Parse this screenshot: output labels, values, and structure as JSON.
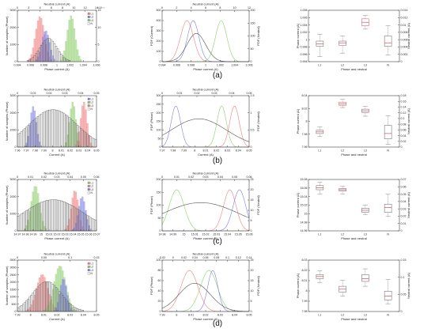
{
  "row_labels": [
    "(a)",
    "(b)",
    "(c)",
    "(d)"
  ],
  "chart_data": [
    {
      "row": "(a)",
      "panels": [
        {
          "type": "histogram",
          "title": "",
          "xlabel": "Phase current (A)",
          "ylabel": "Number of samples (Phase)",
          "top_xlabel": "Neutral current (A)",
          "top_ticks": [
            "0",
            "2",
            "4",
            "6",
            "8",
            "10",
            "12",
            "14"
          ],
          "top_exponent": "×10⁻³",
          "bottom_ticks": [
            "0.994",
            "0.996",
            "0.998",
            "1",
            "1.002",
            "1.004",
            "1.006"
          ],
          "y_ticks": [
            "0",
            "1000",
            "2000",
            "3000"
          ],
          "right_ticks": [
            "0",
            "5",
            "10",
            "15"
          ],
          "legend": [
            "L1",
            "L2",
            "L3",
            "N"
          ],
          "series": [
            {
              "name": "L1",
              "color": "#f08080",
              "center": 0.997,
              "sigma": 0.0008,
              "peak": 2900
            },
            {
              "name": "L2",
              "color": "#8080e8",
              "center": 0.998,
              "sigma": 0.0007,
              "peak": 2000
            },
            {
              "name": "L3",
              "color": "#90d070",
              "center": 1.0025,
              "sigma": 0.0007,
              "peak": 2950
            },
            {
              "name": "N",
              "color": "#606060",
              "center": 0.9985,
              "sigma": 0.0015,
              "peak": 1500
            }
          ],
          "xlim": [
            0.993,
            1.007
          ],
          "ylim": [
            0,
            3300
          ]
        },
        {
          "type": "line",
          "title": "",
          "xlabel": "Phase current (A)",
          "ylabel": "PDF (Current)",
          "right_ylabel": "PDF (Neutral)",
          "top_xlabel": "Neutral current (A)",
          "top_ticks": [
            "0",
            "2",
            "4",
            "6",
            "8",
            "10",
            "12"
          ],
          "bottom_ticks": [
            "0.994",
            "0.996",
            "0.998",
            "1",
            "1.002",
            "1.004",
            "1.006"
          ],
          "y_ticks": [
            "0",
            "100",
            "200",
            "300",
            "400",
            "500"
          ],
          "right_ticks": [
            "0",
            "50",
            "100",
            "150",
            "200"
          ],
          "xlim": [
            0.993,
            1.007
          ],
          "ylim": [
            0,
            550
          ]
        },
        {
          "type": "boxplot",
          "xlabel": "Phase and neutral",
          "ylabel": "Phase current (A)",
          "right_ylabel": "Neutral current (A)",
          "categories": [
            "L1",
            "L2",
            "L3",
            "N"
          ],
          "y_ticks": [
            "0.994",
            "0.996",
            "0.998",
            "1",
            "1.002",
            "1.004",
            "1.006",
            "1.008"
          ],
          "right_ticks": [
            "0",
            "0.002",
            "0.004",
            "0.006",
            "0.008",
            "0.01",
            "0.012",
            "0.014"
          ],
          "boxes": [
            {
              "label": "L1",
              "min": 0.9945,
              "q1": 0.9975,
              "median": 0.9982,
              "q3": 0.999,
              "max": 1.001,
              "color": "#606060"
            },
            {
              "label": "L2",
              "min": 0.9955,
              "q1": 0.9978,
              "median": 0.9985,
              "q3": 0.999,
              "max": 1.0005,
              "color": "#606060"
            },
            {
              "label": "L3",
              "min": 1.0025,
              "q1": 1.0035,
              "median": 1.0045,
              "q3": 1.0055,
              "max": 1.0065,
              "color": "#d05060"
            },
            {
              "label": "N",
              "min": 0.995,
              "q1": 0.9975,
              "median": 0.9985,
              "q3": 1.0005,
              "max": 1.0035,
              "color": "#606060"
            }
          ],
          "ylim": [
            0.993,
            1.008
          ]
        }
      ]
    },
    {
      "row": "(b)",
      "panels": [
        {
          "type": "histogram",
          "xlabel": "Current (A)",
          "ylabel": "Number of samples (Phase)",
          "top_xlabel": "Neutral current (A)",
          "top_ticks": [
            "0",
            "0.01",
            "0.02",
            "0.03",
            "0.04",
            "0.05"
          ],
          "bottom_ticks": [
            "7.96",
            "7.97",
            "7.98",
            "7.99",
            "8",
            "8.01",
            "8.02",
            "8.03",
            "8.04",
            "8.05"
          ],
          "y_ticks": [
            "0",
            "1000",
            "2000",
            "3000"
          ],
          "legend": [
            "L1",
            "L2",
            "L3",
            "N"
          ],
          "series": [
            {
              "name": "L1",
              "color": "#8080e8",
              "center": 7.975,
              "sigma": 0.004,
              "peak": 2600
            },
            {
              "name": "L2",
              "color": "#90d070",
              "center": 8.025,
              "sigma": 0.004,
              "peak": 2900
            },
            {
              "name": "L3",
              "color": "#f08080",
              "center": 8.039,
              "sigma": 0.004,
              "peak": 2900
            },
            {
              "name": "N",
              "color": "#606060",
              "center": 8.0,
              "sigma": 0.03,
              "peak": 2400
            }
          ],
          "xlim": [
            7.955,
            8.055
          ],
          "ylim": [
            0,
            3300
          ]
        },
        {
          "type": "line",
          "xlabel": "Current (A)",
          "ylabel": "PDF (Phase)",
          "right_ylabel": "PDF (Neutral)",
          "top_xlabel": "Neutral current (A)",
          "top_ticks": [
            "0",
            "0.01",
            "0.02",
            "0.03",
            "0.04",
            "0.05"
          ],
          "bottom_ticks": [
            "7.97",
            "7.98",
            "7.99",
            "8",
            "8.01",
            "8.02",
            "8.03",
            "8.04",
            "8.05"
          ],
          "y_ticks": [
            "0",
            "50",
            "100",
            "150",
            "200",
            "250",
            "300"
          ],
          "right_ticks": [
            "0",
            "0.5",
            "1",
            "1.5"
          ],
          "xlim": [
            7.96,
            8.055
          ],
          "ylim": [
            0,
            320
          ]
        },
        {
          "type": "boxplot",
          "xlabel": "Phase and neutral",
          "ylabel": "Phase current (A)",
          "right_ylabel": "Neutral current (A)",
          "categories": [
            "L1",
            "L2",
            "L3",
            "N"
          ],
          "y_ticks": [
            "7.96",
            "7.98",
            "8",
            "8.02",
            "8.04"
          ],
          "right_ticks": [
            "0",
            "0.02",
            "0.04",
            "0.06",
            "0.08",
            "0.1",
            "0.12",
            "0.14",
            "0.16",
            "0.18"
          ],
          "boxes": [
            {
              "label": "L1",
              "min": 7.975,
              "q1": 7.98,
              "median": 7.983,
              "q3": 7.986,
              "max": 7.992,
              "color": "#606060"
            },
            {
              "label": "L2",
              "min": 8.028,
              "q1": 8.032,
              "median": 8.035,
              "q3": 8.038,
              "max": 8.043,
              "color": "#d05060"
            },
            {
              "label": "L3",
              "min": 8.012,
              "q1": 8.019,
              "median": 8.022,
              "q3": 8.025,
              "max": 8.03,
              "color": "#606060"
            },
            {
              "label": "N",
              "min": 7.96,
              "q1": 7.97,
              "median": 7.98,
              "q3": 7.995,
              "max": 8.013,
              "color": "#606060"
            }
          ],
          "ylim": [
            7.955,
            8.05
          ]
        }
      ]
    },
    {
      "row": "(c)",
      "panels": [
        {
          "type": "histogram",
          "xlabel": "Phase current (A)",
          "ylabel": "Number of samples (Phase)",
          "top_xlabel": "Neutral current (A)",
          "top_ticks": [
            "0",
            "0.01",
            "0.02",
            "0.03",
            "0.04",
            "0.05",
            "0.06"
          ],
          "bottom_ticks": [
            "14.97",
            "14.98",
            "14.99",
            "15",
            "15.01",
            "15.02",
            "15.03",
            "15.04",
            "15.05",
            "15.06",
            "15.07"
          ],
          "y_ticks": [
            "0",
            "1000",
            "2000",
            "3000"
          ],
          "legend": [
            "L1",
            "L2",
            "L3",
            "N"
          ],
          "series": [
            {
              "name": "L1",
              "color": "#90d070",
              "center": 14.99,
              "sigma": 0.006,
              "peak": 2900
            },
            {
              "name": "L2",
              "color": "#f08080",
              "center": 15.045,
              "sigma": 0.005,
              "peak": 2600
            },
            {
              "name": "L3",
              "color": "#8080e8",
              "center": 15.055,
              "sigma": 0.005,
              "peak": 2200
            },
            {
              "name": "N",
              "color": "#606060",
              "center": 15.015,
              "sigma": 0.04,
              "peak": 2000
            }
          ],
          "xlim": [
            14.965,
            15.075
          ],
          "ylim": [
            0,
            3300
          ]
        },
        {
          "type": "line",
          "xlabel": "Phase current (A)",
          "ylabel": "PDF (Phase)",
          "right_ylabel": "PDF (Neutral)",
          "top_xlabel": "Neutral current (A)",
          "top_ticks": [
            "0",
            "0.01",
            "0.02",
            "0.03",
            "0.04",
            "0.05",
            "0.06"
          ],
          "bottom_ticks": [
            "14.98",
            "14.99",
            "15",
            "15.01",
            "15.02",
            "15.03",
            "15.04",
            "15.05",
            "15.06"
          ],
          "y_ticks": [
            "0",
            "50",
            "100",
            "150",
            "200"
          ],
          "right_ticks": [
            "0",
            "5",
            "10",
            "15",
            "20",
            "25"
          ],
          "xlim": [
            14.975,
            15.065
          ],
          "ylim": [
            0,
            220
          ]
        },
        {
          "type": "boxplot",
          "xlabel": "Phase and neutral",
          "ylabel": "Phase current (A)",
          "right_ylabel": "Neutral current (A)",
          "categories": [
            "L1",
            "L2",
            "L3",
            "N"
          ],
          "y_ticks": [
            "14.96",
            "14.98",
            "15",
            "15.02",
            "15.04",
            "15.06",
            "15.08"
          ],
          "right_ticks": [
            "0",
            "0.01",
            "0.02",
            "0.03",
            "0.04",
            "0.05",
            "0.06",
            "0.07"
          ],
          "boxes": [
            {
              "label": "L1",
              "min": 15.045,
              "q1": 15.055,
              "median": 15.06,
              "q3": 15.065,
              "max": 15.073,
              "color": "#606060"
            },
            {
              "label": "L2",
              "min": 15.045,
              "q1": 15.052,
              "median": 15.055,
              "q3": 15.058,
              "max": 15.063,
              "color": "#606060"
            },
            {
              "label": "L3",
              "min": 14.995,
              "q1": 15.0,
              "median": 15.005,
              "q3": 15.01,
              "max": 15.018,
              "color": "#606060"
            },
            {
              "label": "N",
              "min": 14.99,
              "q1": 15.0,
              "median": 15.012,
              "q3": 15.02,
              "max": 15.045,
              "color": "#606060"
            }
          ],
          "ylim": [
            14.955,
            15.08
          ]
        }
      ]
    },
    {
      "row": "(d)",
      "panels": [
        {
          "type": "histogram",
          "xlabel": "Current (A)",
          "ylabel": "Number of samples (Phase)",
          "top_xlabel": "Neutral current (A)",
          "top_ticks": [
            "0",
            "0.05",
            "0.1",
            "0.15"
          ],
          "bottom_ticks": [
            "7.99",
            "8",
            "8.01",
            "8.02",
            "8.03",
            "8.04",
            "8.05"
          ],
          "y_ticks": [
            "0",
            "500",
            "1000",
            "1500",
            "2000",
            "2500",
            "3000",
            "3500"
          ],
          "legend": [
            "L1",
            "L2",
            "L3",
            "N"
          ],
          "series": [
            {
              "name": "L1",
              "color": "#f08080",
              "center": 8.006,
              "sigma": 0.005,
              "peak": 2600
            },
            {
              "name": "L2",
              "color": "#90d070",
              "center": 8.021,
              "sigma": 0.005,
              "peak": 3200
            },
            {
              "name": "L3",
              "color": "#8080e8",
              "center": 8.024,
              "sigma": 0.003,
              "peak": 2300
            },
            {
              "name": "N",
              "color": "#606060",
              "center": 8.01,
              "sigma": 0.012,
              "peak": 2100
            }
          ],
          "xlim": [
            7.985,
            8.052
          ],
          "ylim": [
            0,
            3600
          ]
        },
        {
          "type": "line",
          "xlabel": "Phase current (A)",
          "ylabel": "PDF (Phase)",
          "right_ylabel": "PDF (Neutral)",
          "top_xlabel": "Neutral current (A)",
          "top_ticks": [
            "-0.02",
            "0",
            "0.02",
            "0.04",
            "0.06",
            "0.08",
            "0.1",
            "0.12",
            "0.14"
          ],
          "bottom_ticks": [
            "7.99",
            "8",
            "8.01",
            "8.02",
            "8.03",
            "8.04",
            "8.05"
          ],
          "y_ticks": [
            "0",
            "20",
            "40",
            "60",
            "80",
            "100"
          ],
          "right_ticks": [
            "0",
            "5",
            "10",
            "15",
            "20",
            "25"
          ],
          "xlim": [
            7.985,
            8.052
          ],
          "ylim": [
            0,
            105
          ]
        },
        {
          "type": "boxplot",
          "xlabel": "Phase and neutral",
          "ylabel": "Phase current (A)",
          "right_ylabel": "Neutral current (A)",
          "categories": [
            "L1",
            "L2",
            "L3",
            "N"
          ],
          "y_ticks": [
            "7.98",
            "7.99",
            "8",
            "8.01",
            "8.02",
            "8.03"
          ],
          "right_ticks": [
            "0",
            "0.05",
            "0.1",
            "0.15"
          ],
          "boxes": [
            {
              "label": "L1",
              "min": 8.012,
              "q1": 8.016,
              "median": 8.018,
              "q3": 8.02,
              "max": 8.024,
              "color": "#606060"
            },
            {
              "label": "L2",
              "min": 7.998,
              "q1": 8.002,
              "median": 8.005,
              "q3": 8.008,
              "max": 8.014,
              "color": "#606060"
            },
            {
              "label": "L3",
              "min": 8.008,
              "q1": 8.013,
              "median": 8.016,
              "q3": 8.02,
              "max": 8.026,
              "color": "#606060"
            },
            {
              "label": "N",
              "min": 7.99,
              "q1": 7.994,
              "median": 7.998,
              "q3": 8.003,
              "max": 8.015,
              "color": "#606060"
            }
          ],
          "ylim": [
            7.982,
            8.035
          ]
        }
      ]
    }
  ]
}
